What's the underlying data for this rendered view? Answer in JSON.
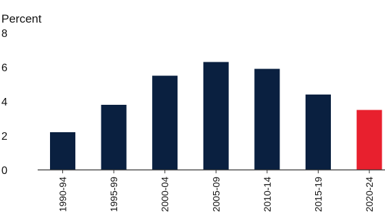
{
  "chart_data": {
    "type": "bar",
    "ylabel": "Percent",
    "ylim": [
      0,
      8
    ],
    "yticks": [
      0,
      2,
      4,
      6,
      8
    ],
    "grid": false,
    "categories": [
      "1990-94",
      "1995-99",
      "2000-04",
      "2005-09",
      "2010-14",
      "2015-19",
      "2020-24"
    ],
    "values": [
      2.2,
      3.8,
      5.5,
      6.3,
      5.9,
      4.4,
      3.5
    ],
    "highlight_index": 6,
    "colors": {
      "bar": "#0a2040",
      "highlight": "#e8202e",
      "axis": "#333333"
    }
  }
}
